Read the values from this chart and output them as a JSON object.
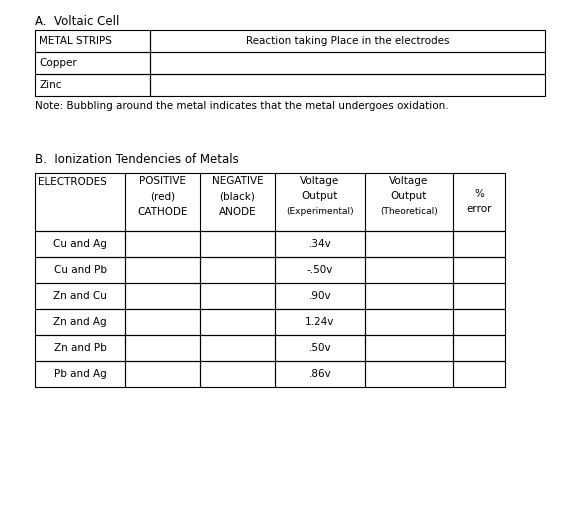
{
  "title_a": "A.  Voltaic Cell",
  "title_b": "B.  Ionization Tendencies of Metals",
  "note": "Note: Bubbling around the metal indicates that the metal undergoes oxidation.",
  "table_a_header": [
    "METAL STRIPS",
    "Reaction taking Place in the electrodes"
  ],
  "table_a_rows": [
    [
      "Copper",
      ""
    ],
    [
      "Zinc",
      ""
    ]
  ],
  "table_b_header": [
    [
      "ELECTRODES",
      "POSITIVE\n(red)\nCATHODE",
      "NEGATIVE\n(black)\nANODE",
      "Voltage\nOutput\n(Experimental)",
      "Voltage\nOutput\n(Theoretical)",
      "%\nerror"
    ]
  ],
  "table_b_rows": [
    [
      "Cu and Ag",
      "",
      "",
      ".34v",
      "",
      ""
    ],
    [
      "Cu and Pb",
      "",
      "",
      "-.50v",
      "",
      ""
    ],
    [
      "Zn and Cu",
      "",
      "",
      ".90v",
      "",
      ""
    ],
    [
      "Zn and Ag",
      "",
      "",
      "1.24v",
      "",
      ""
    ],
    [
      "Zn and Pb",
      "",
      "",
      ".50v",
      "",
      ""
    ],
    [
      "Pb and Ag",
      "",
      "",
      ".86v",
      "",
      ""
    ]
  ],
  "bg_color": "#ffffff",
  "text_color": "#000000"
}
